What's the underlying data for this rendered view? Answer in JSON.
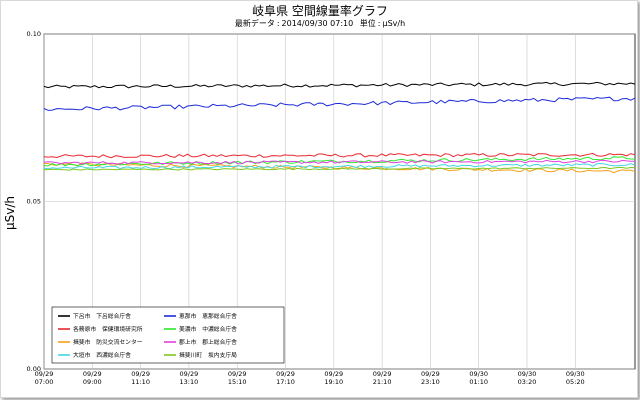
{
  "chart_data": {
    "type": "line",
    "title": "岐阜県 空間線量率グラフ",
    "subtitle": {
      "latest_label": "最新データ",
      "latest_value": "2014/09/30 07:10",
      "unit_label": "単位",
      "unit_value": "μSv/h"
    },
    "ylabel": "μSv/h",
    "ylim": [
      0.0,
      0.1
    ],
    "y_ticks": [
      "0.00",
      "0.05",
      "0.10"
    ],
    "x_tick_labels": [
      [
        "09/29",
        "07:00"
      ],
      [
        "09/29",
        "09:00"
      ],
      [
        "09/29",
        "11:10"
      ],
      [
        "09/29",
        "13:10"
      ],
      [
        "09/29",
        "15:10"
      ],
      [
        "09/29",
        "17:10"
      ],
      [
        "09/29",
        "19:10"
      ],
      [
        "09/29",
        "21:10"
      ],
      [
        "09/29",
        "23:10"
      ],
      [
        "09/30",
        "01:10"
      ],
      [
        "09/30",
        "03:20"
      ],
      [
        "09/30",
        "05:20"
      ]
    ],
    "grid": true,
    "legend_position": "bottom-left",
    "series": [
      {
        "name": "下呂市　下呂総合庁舎",
        "color": "#000000",
        "start": 0.0842,
        "end": 0.0852,
        "noise": 0.0005
      },
      {
        "name": "各務原市　保健環境研究所",
        "color": "#e8282f",
        "start": 0.0635,
        "end": 0.064,
        "noise": 0.0005
      },
      {
        "name": "揖斐市　防災交流センター",
        "color": "#f5a01a",
        "start": 0.0612,
        "end": 0.059,
        "noise": 0.0005
      },
      {
        "name": "大垣市　西濃総合庁舎",
        "color": "#3fd7e0",
        "start": 0.06,
        "end": 0.061,
        "noise": 0.0004
      },
      {
        "name": "恵那市　恵那総合庁舎",
        "color": "#1c2bd8",
        "start": 0.0775,
        "end": 0.0808,
        "noise": 0.0006
      },
      {
        "name": "美濃市　中濃総合庁舎",
        "color": "#2ee82e",
        "start": 0.061,
        "end": 0.063,
        "noise": 0.0005
      },
      {
        "name": "郡上市　郡上総合庁舎",
        "color": "#e040e0",
        "start": 0.0615,
        "end": 0.062,
        "noise": 0.0004
      },
      {
        "name": "揖斐川町　坂内支庁局",
        "color": "#7ec81e",
        "start": 0.0595,
        "end": 0.06,
        "noise": 0.0002
      }
    ]
  }
}
